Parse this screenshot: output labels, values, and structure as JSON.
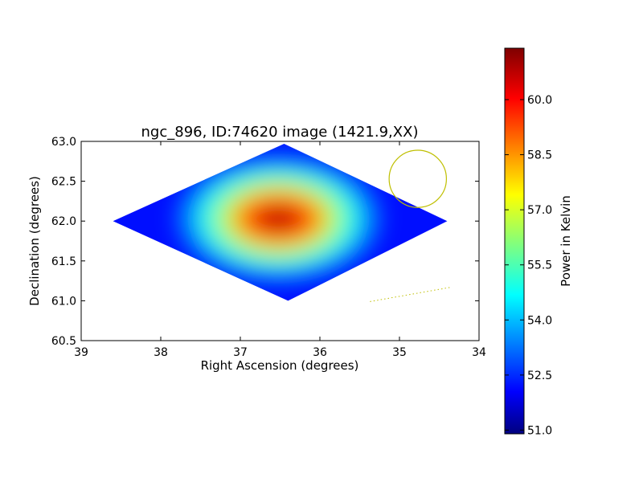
{
  "chart_data": {
    "type": "heatmap",
    "title": "ngc_896, ID:74620 image (1421.9,XX)",
    "xlabel": "Right Ascension (degrees)",
    "ylabel": "Declination (degrees)",
    "xlim": [
      39,
      34
    ],
    "ylim": [
      60.5,
      63.0
    ],
    "x_ticks": [
      "39",
      "38",
      "37",
      "36",
      "35",
      "34"
    ],
    "y_ticks": [
      "60.5",
      "61.0",
      "61.5",
      "62.0",
      "62.5",
      "63.0"
    ],
    "colorbar": {
      "label": "Power in Kelvin",
      "min": 50.9,
      "max": 61.4,
      "ticks": [
        "51.0",
        "52.5",
        "54.0",
        "55.5",
        "57.0",
        "58.5",
        "60.0"
      ],
      "colormap": "jet"
    },
    "map_outline": [
      [
        36.45,
        62.97
      ],
      [
        34.4,
        62.0
      ],
      [
        36.4,
        61.0
      ],
      [
        38.6,
        62.0
      ]
    ],
    "peak": {
      "ra": 36.5,
      "dec": 62.0,
      "value": 60.8
    },
    "circle_annotation": {
      "ra": 34.77,
      "dec": 62.53,
      "radius_deg": 0.36,
      "color": "#bfbf00"
    },
    "line_annotation": {
      "points": [
        [
          35.37,
          60.99
        ],
        [
          34.35,
          61.17
        ]
      ],
      "style": "dotted",
      "color": "#bfbf00"
    }
  }
}
